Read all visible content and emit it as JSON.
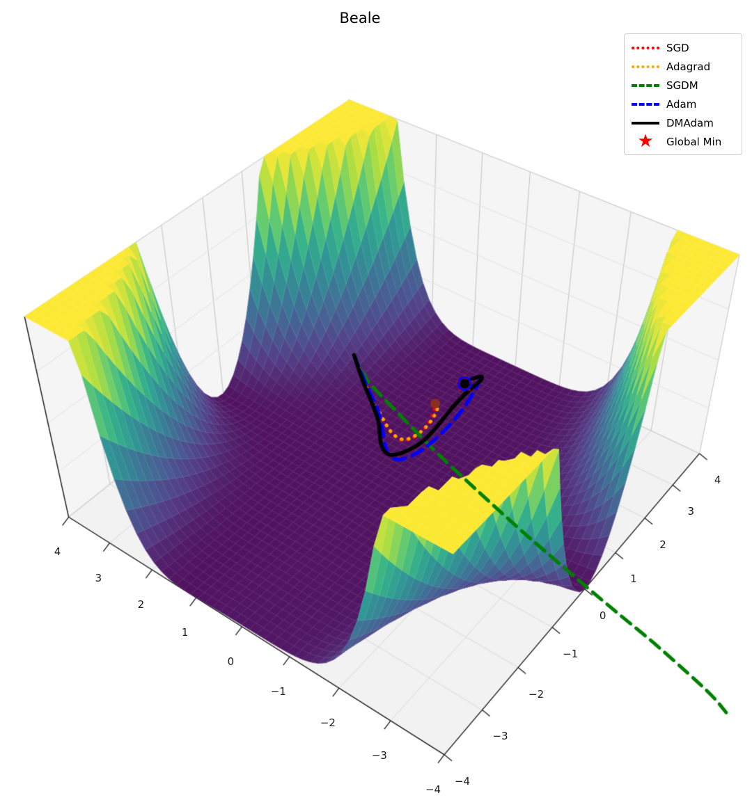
{
  "title": "Beale",
  "legend": {
    "entries": [
      {
        "label": "SGD",
        "color": "#ff0000",
        "style": "dotted"
      },
      {
        "label": "Adagrad",
        "color": "#ffa500",
        "style": "dotted"
      },
      {
        "label": "SGDM",
        "color": "#008000",
        "style": "dashed"
      },
      {
        "label": "Adam",
        "color": "#0000ff",
        "style": "dashed"
      },
      {
        "label": "DMAdam",
        "color": "#000000",
        "style": "solid"
      },
      {
        "label": "Global Min",
        "color": "#ff0000",
        "style": "star"
      }
    ]
  },
  "chart_data": {
    "type": "surface_3d",
    "title": "Beale",
    "surface": {
      "function": "Beale",
      "x_range": [
        -4,
        4
      ],
      "y_range": [
        -4,
        4
      ],
      "z_clip": 10000,
      "grid_n": 50,
      "colormap": "viridis"
    },
    "axes": {
      "x_ticks": [
        4,
        3,
        2,
        1,
        0,
        -1,
        -2,
        -3,
        -4
      ],
      "y_ticks": [
        4,
        3,
        2,
        1,
        0,
        -1,
        -2,
        -3,
        -4
      ],
      "grid": true
    },
    "global_min": {
      "x": 3,
      "y": 0.5,
      "z": 0,
      "label": "Global Min",
      "marker": "star",
      "color": "#ff0000"
    },
    "start_point": {
      "x": 2.0,
      "y": 2.4
    },
    "series": [
      {
        "name": "SGD",
        "color": "#ff0000",
        "line_style": "dotted",
        "width": 5,
        "points": [
          [
            2.0,
            2.4,
            957
          ],
          [
            1.68,
            1.88,
            205
          ],
          [
            1.42,
            1.42,
            48
          ],
          [
            1.18,
            1.02,
            15
          ],
          [
            1.03,
            0.75,
            9
          ],
          [
            1.0,
            0.52,
            7
          ],
          [
            1.12,
            0.42,
            5
          ],
          [
            1.38,
            0.37,
            3.4
          ],
          [
            1.7,
            0.4,
            2
          ],
          [
            2.0,
            0.5,
            1.3
          ],
          [
            2.2,
            0.62,
            1.8
          ]
        ]
      },
      {
        "name": "Adagrad",
        "color": "#ffa500",
        "line_style": "dotted",
        "width": 5,
        "points": [
          [
            2.0,
            2.4,
            957
          ],
          [
            1.7,
            1.9,
            212
          ],
          [
            1.45,
            1.45,
            51
          ],
          [
            1.2,
            1.05,
            16
          ],
          [
            1.05,
            0.78,
            9.3
          ],
          [
            1.02,
            0.55,
            7.3
          ],
          [
            1.12,
            0.44,
            5.1
          ],
          [
            1.35,
            0.38,
            3.5
          ],
          [
            1.65,
            0.38,
            2.1
          ],
          [
            1.95,
            0.44,
            1.3
          ],
          [
            2.15,
            0.52,
            1.3
          ],
          [
            2.25,
            0.6,
            1.8
          ]
        ]
      },
      {
        "name": "SGDM",
        "color": "#008000",
        "line_style": "dashed",
        "width": 5,
        "points": [
          [
            2.0,
            2.4,
            957
          ],
          [
            1.85,
            2.05,
            358
          ],
          [
            1.77,
            1.7,
            130
          ],
          [
            1.65,
            1.28,
            35
          ],
          [
            1.5,
            0.85,
            9.2
          ],
          [
            1.35,
            0.42,
            3.7
          ],
          [
            1.2,
            0.0,
            3.2
          ],
          [
            1.05,
            -0.45,
            4.2
          ],
          [
            0.9,
            -0.95,
            5.6
          ],
          [
            0.75,
            -1.45,
            9.8
          ],
          [
            0.6,
            -1.95,
            21
          ],
          [
            0.45,
            -2.45,
            40
          ],
          [
            0.3,
            -3.0,
            55
          ],
          [
            0.15,
            -3.6,
            38
          ],
          [
            0.0,
            -4.2,
            14
          ],
          [
            -0.15,
            -4.85,
            0
          ],
          [
            -0.3,
            -5.5,
            0
          ],
          [
            -0.5,
            -6.2,
            0
          ],
          [
            -0.65,
            -6.7,
            0
          ],
          [
            -0.8,
            -7.0,
            0
          ]
        ]
      },
      {
        "name": "Adam",
        "color": "#0000ff",
        "line_style": "dashed",
        "width": 5,
        "points": [
          [
            2.0,
            2.4,
            957
          ],
          [
            1.7,
            1.85,
            186
          ],
          [
            1.4,
            1.35,
            37
          ],
          [
            1.0,
            0.95,
            13
          ],
          [
            0.65,
            0.62,
            9.5
          ],
          [
            0.52,
            0.4,
            9.2
          ],
          [
            0.6,
            0.22,
            8
          ],
          [
            0.9,
            0.1,
            5.3
          ],
          [
            1.3,
            0.05,
            2.7
          ],
          [
            1.8,
            0.05,
            0.9
          ],
          [
            2.3,
            0.1,
            0.4
          ],
          [
            2.75,
            0.18,
            0.8
          ],
          [
            3.1,
            0.27,
            1.1
          ],
          [
            3.35,
            0.36,
            1.2
          ],
          [
            3.28,
            0.46,
            0.3
          ],
          [
            3.05,
            0.5,
            0.1
          ]
        ]
      },
      {
        "name": "DMAdam",
        "color": "#000000",
        "line_style": "solid",
        "width": 5.5,
        "points": [
          [
            2.0,
            2.4,
            957
          ],
          [
            1.75,
            2.0,
            288
          ],
          [
            1.5,
            1.6,
            80
          ],
          [
            1.15,
            1.15,
            20
          ],
          [
            0.9,
            0.95,
            13
          ],
          [
            0.65,
            0.72,
            10.4
          ],
          [
            0.55,
            0.5,
            9.5
          ],
          [
            0.65,
            0.38,
            8.1
          ],
          [
            0.85,
            0.28,
            6.2
          ],
          [
            1.15,
            0.2,
            3.9
          ],
          [
            1.5,
            0.2,
            2
          ],
          [
            1.9,
            0.25,
            0.8
          ],
          [
            2.3,
            0.3,
            0.2
          ],
          [
            2.7,
            0.33,
            0.1
          ],
          [
            3.05,
            0.32,
            0.15
          ],
          [
            3.3,
            0.3,
            0.9
          ],
          [
            3.38,
            0.36,
            1.3
          ],
          [
            3.25,
            0.45,
            0.3
          ],
          [
            3.0,
            0.5,
            0
          ]
        ]
      }
    ],
    "end_marker": {
      "series": "SGD",
      "color": "#8b2e1f"
    }
  }
}
